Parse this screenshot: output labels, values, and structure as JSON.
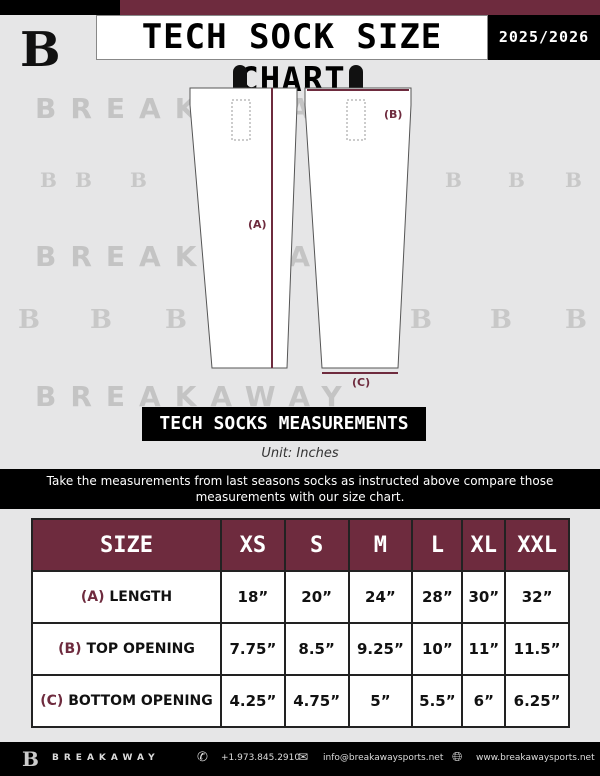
{
  "header": {
    "title": "TECH SOCK SIZE CHART",
    "season": "2025/2026",
    "logo_text": "B"
  },
  "watermark": {
    "word": "BREAKAWAY",
    "logo": "B"
  },
  "diagram": {
    "label_a": "(A)",
    "label_b": "(B)",
    "label_c": "(C)"
  },
  "section_title": "TECH SOCKS MEASUREMENTS",
  "unit": "Unit: Inches",
  "instructions": "Take the measurements from last seasons socks as instructed above compare those measurements  with our size chart.",
  "colors": {
    "accent": "#6e2b3e",
    "dark": "#000000"
  },
  "table": {
    "headers": [
      "SIZE",
      "XS",
      "S",
      "M",
      "L",
      "XL",
      "XXL"
    ],
    "rows": [
      {
        "letter": "(A)",
        "label": "LENGTH",
        "values": [
          "18”",
          "20”",
          "24”",
          "28”",
          "30”",
          "32”"
        ]
      },
      {
        "letter": "(B)",
        "label": "TOP OPENING",
        "values": [
          "7.75”",
          "8.5”",
          "9.25”",
          "10”",
          "11”",
          "11.5”"
        ]
      },
      {
        "letter": "(C)",
        "label": "BOTTOM OPENING",
        "values": [
          "4.25”",
          "4.75”",
          "5”",
          "5.5”",
          "6”",
          "6.25”"
        ]
      }
    ]
  },
  "footer": {
    "brand": "BREAKAWAY",
    "phone": "+1.973.845.2910",
    "email": "info@breakawaysports.net",
    "website": "www.breakawaysports.net",
    "icons": [
      "phone-icon",
      "mail-icon",
      "globe-icon"
    ]
  }
}
